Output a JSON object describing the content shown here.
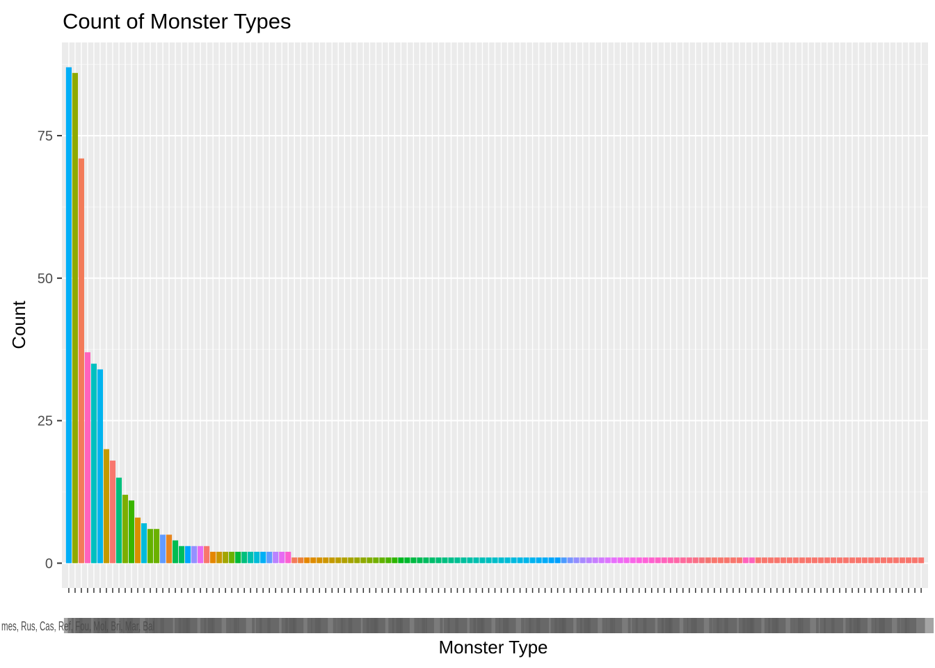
{
  "chart_data": {
    "type": "bar",
    "title": "Count of Monster Types",
    "xlabel": "Monster Type",
    "ylabel": "Count",
    "ylim": [
      -4.35,
      91.35
    ],
    "yticks": [
      0,
      25,
      50,
      75
    ],
    "grid": true,
    "legend": "none",
    "values": [
      87,
      86,
      71,
      37,
      35,
      34,
      20,
      18,
      15,
      12,
      11,
      8,
      7,
      6,
      6,
      5,
      5,
      4,
      3,
      3,
      3,
      3,
      3,
      2,
      2,
      2,
      2,
      2,
      2,
      2,
      2,
      2,
      2,
      2,
      2,
      2,
      1,
      1,
      1,
      1,
      1,
      1,
      1,
      1,
      1,
      1,
      1,
      1,
      1,
      1,
      1,
      1,
      1,
      1,
      1,
      1,
      1,
      1,
      1,
      1,
      1,
      1,
      1,
      1,
      1,
      1,
      1,
      1,
      1,
      1,
      1,
      1,
      1,
      1,
      1,
      1,
      1,
      1,
      1,
      1,
      1,
      1,
      1,
      1,
      1,
      1,
      1,
      1,
      1,
      1,
      1,
      1,
      1,
      1,
      1,
      1,
      1,
      1,
      1,
      1,
      1,
      1,
      1,
      1,
      1,
      1,
      1,
      1,
      1,
      1,
      1,
      1,
      1,
      1,
      1,
      1,
      1,
      1,
      1,
      1,
      1,
      1,
      1,
      1,
      1,
      1,
      1,
      1,
      1,
      1,
      1,
      1,
      1,
      1,
      1,
      1,
      1
    ],
    "colors": [
      "#00AEF7",
      "#8FAA00",
      "#F37B59",
      "#FF62BC",
      "#00C0C0",
      "#00B4EF",
      "#C49A00",
      "#F8766D",
      "#00BF7D",
      "#7CAE00",
      "#39B600",
      "#D89000",
      "#00BBDB",
      "#64B200",
      "#6BB100",
      "#619CFF",
      "#E7851E",
      "#00BC51",
      "#00BD5C",
      "#00A5FF",
      "#9590FF",
      "#E76BF3",
      "#F8766D",
      "#E58700",
      "#C99800",
      "#A3A500",
      "#6BB100",
      "#00BA38",
      "#00BF7D",
      "#00C0AF",
      "#00BCD8",
      "#00B0F6",
      "#619CFF",
      "#B983FF",
      "#E76BF3",
      "#FD61D1",
      "#F37B59",
      "#EC8239",
      "#E58700",
      "#DE8C00",
      "#D69100",
      "#CD9600",
      "#C49A00",
      "#BB9E00",
      "#B1A100",
      "#A6A400",
      "#9AA800",
      "#8FAA00",
      "#82AD00",
      "#72B000",
      "#61B200",
      "#4CB400",
      "#2EB600",
      "#00B81F",
      "#00B92F",
      "#00BA42",
      "#00BB52",
      "#00BC5F",
      "#00BD6B",
      "#00BE76",
      "#00BF80",
      "#00BF8A",
      "#00C094",
      "#00C09D",
      "#00C0A6",
      "#00C0AF",
      "#00BFB8",
      "#00BFC0",
      "#00BEC8",
      "#00BDD0",
      "#00BCD7",
      "#00BADE",
      "#00B8E4",
      "#00B6EA",
      "#00B3EF",
      "#00AFF4",
      "#00ABF8",
      "#00A6FC",
      "#00A0FF",
      "#4C9BFF",
      "#7895FF",
      "#938FFF",
      "#A88AFF",
      "#B984FF",
      "#C77FFF",
      "#D37AFF",
      "#DE75FF",
      "#E770FC",
      "#EE6CF6",
      "#F468EF",
      "#F965E8",
      "#FC63E0",
      "#FF62D8",
      "#FF61CF",
      "#FF62C6",
      "#FF63BC",
      "#FF65B2",
      "#FF67A8",
      "#FE6A9D",
      "#FC6D92",
      "#F97087",
      "#F6737C",
      "#F37671",
      "#F8766D",
      "#F8766D",
      "#F8766D",
      "#F8766D",
      "#F8766D",
      "#FF62BC",
      "#FF62BC",
      "#F8766D",
      "#F8766D",
      "#F8766D",
      "#F8766D",
      "#F8766D",
      "#F8766D",
      "#F8766D",
      "#F8766D",
      "#F8766D",
      "#F8766D",
      "#F8766D",
      "#F8766D",
      "#F8766D",
      "#F8766D",
      "#F8766D",
      "#F8766D",
      "#F8766D",
      "#F8766D",
      "#F8766D",
      "#F8766D",
      "#F8766D",
      "#F8766D",
      "#F8766D",
      "#F8766D",
      "#F8766D",
      "#F8766D",
      "#F8766D"
    ],
    "categories_visible_text": "mes, Rus, Cas, Ref, Fou, Mol, Bri, Mar, Bal"
  }
}
